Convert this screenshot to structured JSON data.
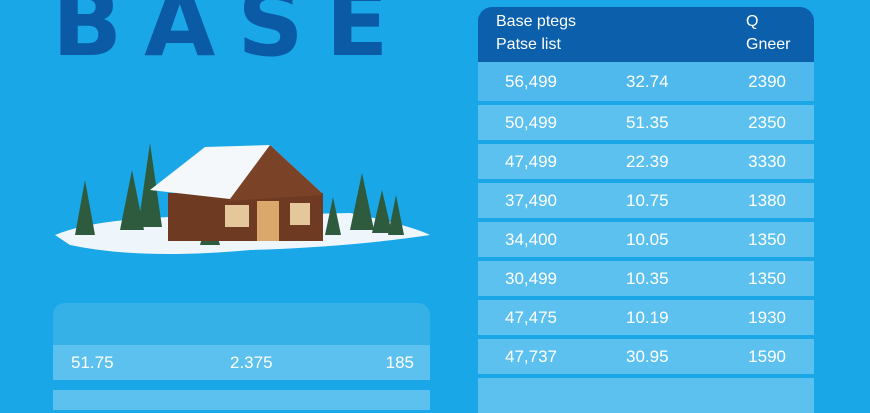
{
  "title": "BASE",
  "table": {
    "header": {
      "line1": "Base ptegs",
      "line2": "Patse list",
      "right1": "Q",
      "right2": "Gneer"
    },
    "rows": [
      [
        "56,499",
        "32.74",
        "2390"
      ],
      [
        "50,499",
        "51.35",
        "2350"
      ],
      [
        "47,499",
        "22.39",
        "3330"
      ],
      [
        "37,490",
        "10.75",
        "1380"
      ],
      [
        "34,400",
        "10.05",
        "1350"
      ],
      [
        "30,499",
        "10.35",
        "1350"
      ],
      [
        "47,475",
        "10.19",
        "1930"
      ],
      [
        "47,737",
        "30.95",
        "1590"
      ]
    ]
  },
  "panel": {
    "rows": [
      [
        "51.75",
        "2.375",
        "185"
      ]
    ]
  },
  "colors": {
    "background": "#19a7e8",
    "title": "#0b5aa6",
    "table_header": "#0b5fab",
    "row": "#5cc1ef"
  },
  "illustration": "snowy-cabin-icon"
}
